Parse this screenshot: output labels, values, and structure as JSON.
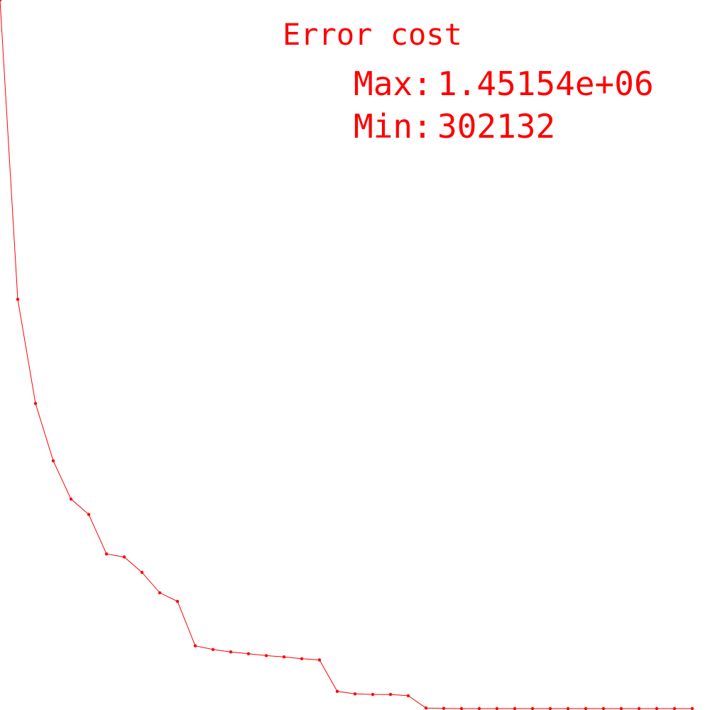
{
  "chart_data": {
    "type": "line",
    "title": "Error cost",
    "stats": {
      "max_label": "Max:",
      "max_value": "1.45154e+06",
      "min_label": "Min:",
      "min_value": "302132"
    },
    "line_color": "#ff0000",
    "marker_color": "#ff0000",
    "background_color": "#ffffff",
    "grid": false,
    "axes_visible": false,
    "xlim": [
      0,
      39
    ],
    "ylim": [
      302132,
      1451540
    ],
    "x": [
      0,
      1,
      2,
      3,
      4,
      5,
      6,
      7,
      8,
      9,
      10,
      11,
      12,
      13,
      14,
      15,
      16,
      17,
      18,
      19,
      20,
      21,
      22,
      23,
      24,
      25,
      26,
      27,
      28,
      29,
      30,
      31,
      32,
      33,
      34,
      35,
      36,
      37,
      38,
      39
    ],
    "y": [
      1451540,
      966000,
      797000,
      704000,
      642000,
      617000,
      553000,
      548000,
      523000,
      490000,
      476000,
      404000,
      398000,
      394000,
      391000,
      388000,
      386000,
      383000,
      381000,
      330000,
      326000,
      325000,
      325000,
      323000,
      303000,
      302500,
      302132,
      302132,
      302132,
      302132,
      302132,
      302132,
      302132,
      302132,
      302132,
      302132,
      302132,
      302132,
      302132,
      302132
    ]
  }
}
